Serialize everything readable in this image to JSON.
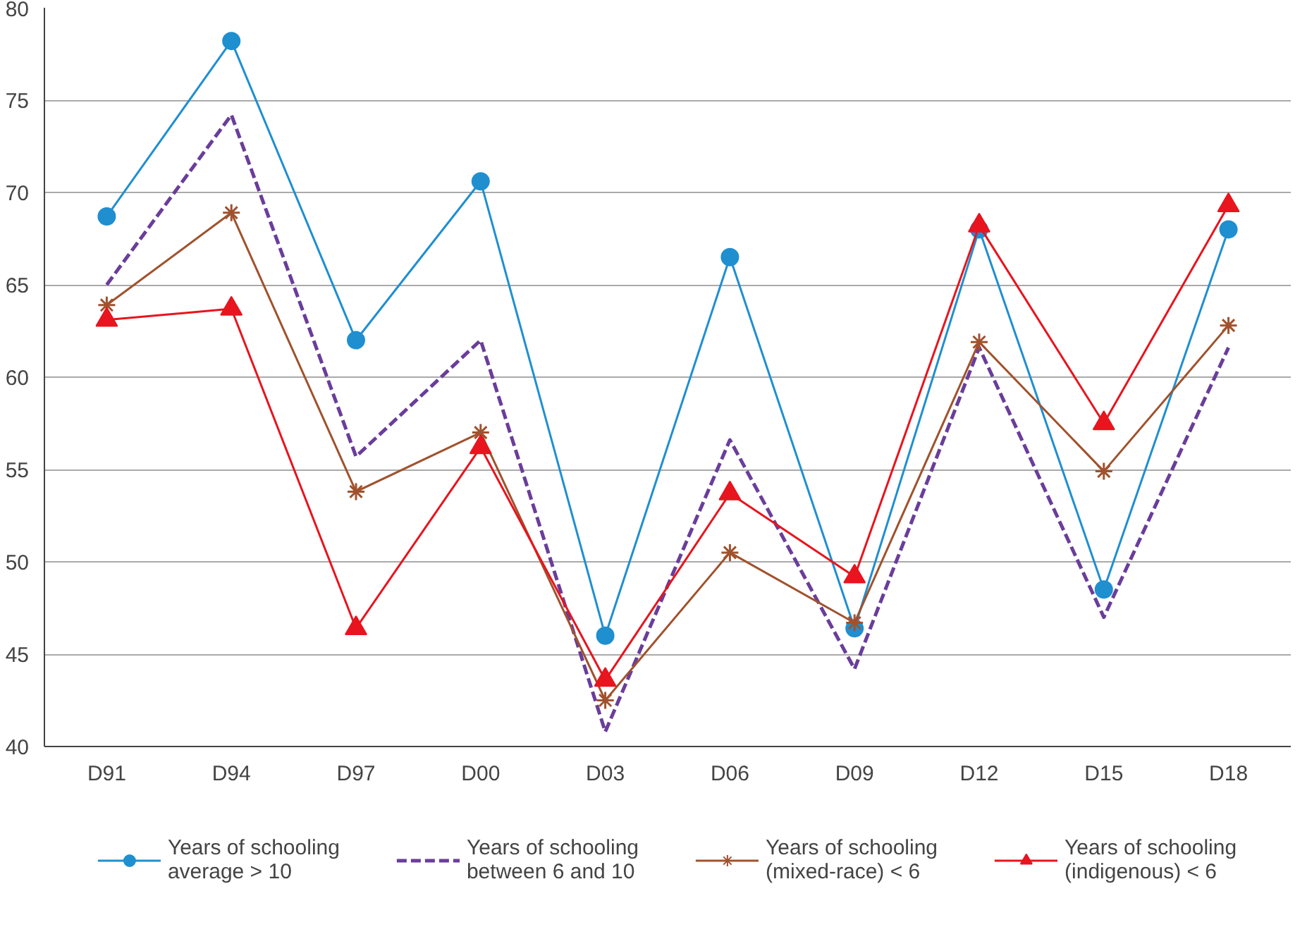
{
  "chart_data": {
    "type": "line",
    "categories": [
      "D91",
      "D94",
      "D97",
      "D00",
      "D03",
      "D06",
      "D09",
      "D12",
      "D15",
      "D18"
    ],
    "ylim": [
      40,
      80
    ],
    "yticks": [
      40,
      45,
      50,
      55,
      60,
      65,
      70,
      75,
      80
    ],
    "grid": "y",
    "legend": "bottom",
    "series": [
      {
        "name": "Years of schooling average > 10",
        "color": "#1f8fd0",
        "marker": "circle",
        "line_style": "solid",
        "values": [
          68.7,
          78.2,
          62.0,
          70.6,
          46.0,
          66.5,
          46.4,
          68.0,
          48.5,
          68.0
        ]
      },
      {
        "name": "Years of schooling between 6 and 10",
        "color": "#6a3d9a",
        "marker": "none",
        "line_style": "dashed",
        "values": [
          65.0,
          74.2,
          55.7,
          62.0,
          40.8,
          56.6,
          44.2,
          61.6,
          47.0,
          61.6
        ]
      },
      {
        "name": "Years of schooling (mixed-race) < 6",
        "color": "#a0522d",
        "marker": "cross",
        "line_style": "solid",
        "values": [
          63.9,
          68.9,
          53.8,
          57.0,
          42.5,
          50.5,
          46.7,
          61.9,
          54.9,
          62.8
        ]
      },
      {
        "name": "Years of schooling (indigenous) < 6",
        "color": "#e8141e",
        "marker": "triangle",
        "line_style": "solid",
        "values": [
          63.1,
          63.7,
          46.4,
          56.2,
          43.6,
          53.7,
          49.2,
          68.2,
          57.5,
          69.3
        ]
      }
    ]
  }
}
